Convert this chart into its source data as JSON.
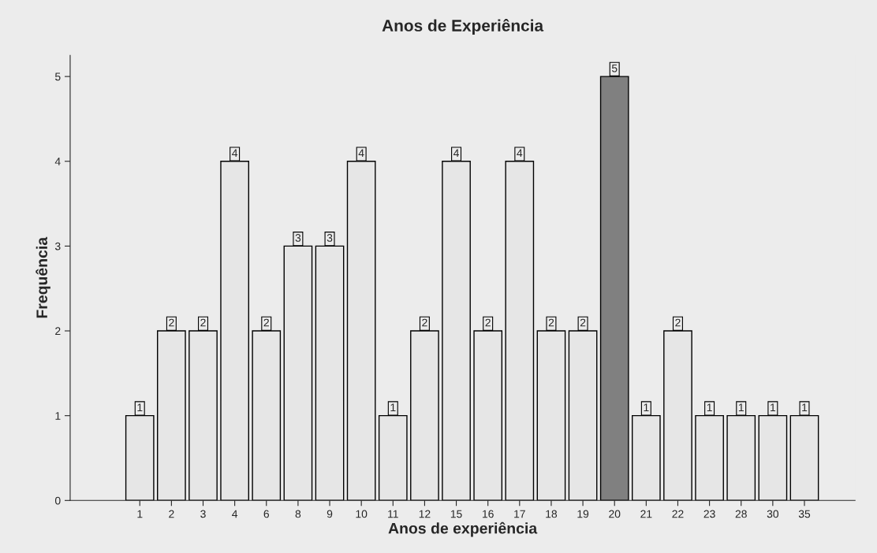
{
  "chart_data": {
    "type": "bar",
    "title": "Anos de Experiência",
    "xlabel": "Anos de experiência",
    "ylabel": "Frequência",
    "categories": [
      "1",
      "2",
      "3",
      "4",
      "6",
      "8",
      "9",
      "10",
      "11",
      "12",
      "15",
      "16",
      "17",
      "18",
      "19",
      "20",
      "21",
      "22",
      "23",
      "28",
      "30",
      "35"
    ],
    "values": [
      1,
      2,
      2,
      4,
      2,
      3,
      3,
      4,
      1,
      2,
      4,
      2,
      4,
      2,
      2,
      5,
      1,
      2,
      1,
      1,
      1,
      1
    ],
    "colors": [
      "#e6e6e6",
      "#e6e6e6",
      "#e6e6e6",
      "#e6e6e6",
      "#e6e6e6",
      "#e6e6e6",
      "#e6e6e6",
      "#e6e6e6",
      "#e6e6e6",
      "#e6e6e6",
      "#e6e6e6",
      "#e6e6e6",
      "#e6e6e6",
      "#e6e6e6",
      "#e6e6e6",
      "#808080",
      "#e6e6e6",
      "#e6e6e6",
      "#e6e6e6",
      "#e6e6e6",
      "#e6e6e6",
      "#e6e6e6"
    ],
    "ylim": [
      0,
      5.25
    ],
    "yticks": [
      0,
      1,
      2,
      3,
      4,
      5
    ],
    "data_labels": true,
    "grid": false,
    "legend": false
  }
}
